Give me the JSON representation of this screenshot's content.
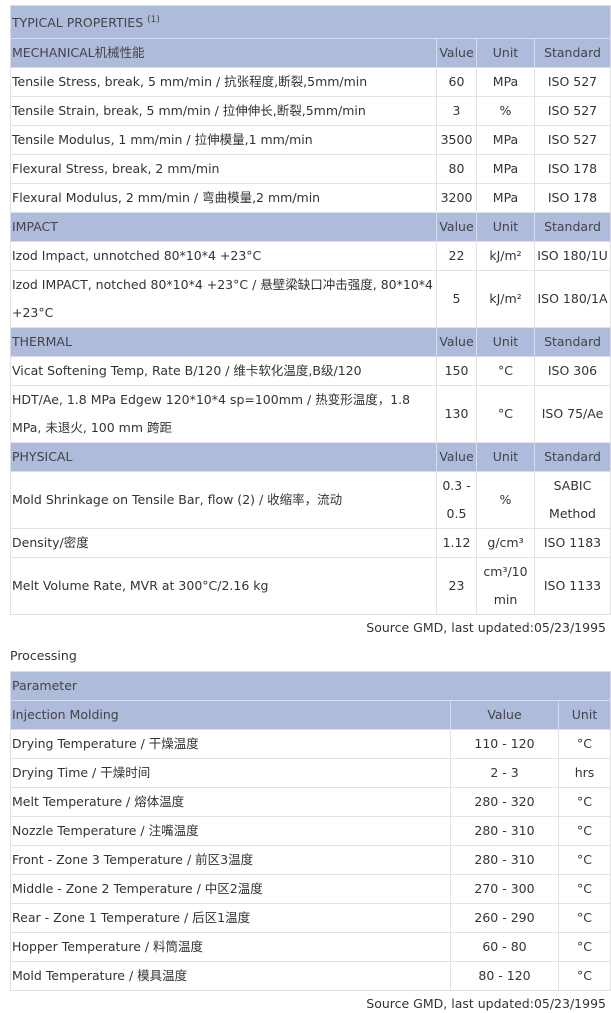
{
  "typical": {
    "title": "TYPICAL PROPERTIES",
    "title_note": "(1)",
    "col_value": "Value",
    "col_unit": "Unit",
    "col_standard": "Standard",
    "sections": [
      {
        "name": "MECHANICAL机械性能",
        "rows": [
          {
            "property": "Tensile Stress, break, 5 mm/min / 抗张程度,断裂,5mm/min",
            "value": "60",
            "unit": "MPa",
            "standard": "ISO 527"
          },
          {
            "property": "Tensile Strain, break, 5 mm/min / 拉伸伸长,断裂,5mm/min",
            "value": "3",
            "unit": "%",
            "standard": "ISO 527"
          },
          {
            "property": "Tensile Modulus, 1 mm/min / 拉伸模量,1 mm/min",
            "value": "3500",
            "unit": "MPa",
            "standard": "ISO 527"
          },
          {
            "property": "Flexural Stress, break, 2 mm/min",
            "value": "80",
            "unit": "MPa",
            "standard": "ISO 178"
          },
          {
            "property": "Flexural Modulus, 2 mm/min / 弯曲模量,2 mm/min",
            "value": "3200",
            "unit": "MPa",
            "standard": "ISO 178"
          }
        ]
      },
      {
        "name": "IMPACT",
        "rows": [
          {
            "property": "Izod Impact, unnotched 80*10*4 +23°C",
            "value": "22",
            "unit": "kJ/m²",
            "standard": "ISO 180/1U"
          },
          {
            "property": "Izod IMPACT, notched 80*10*4 +23°C / 悬壁梁缺口冲击强度, 80*10*4 +23°C",
            "value": "5",
            "unit": "kJ/m²",
            "standard": "ISO 180/1A"
          }
        ]
      },
      {
        "name": "THERMAL",
        "rows": [
          {
            "property": "Vicat Softening Temp, Rate B/120 / 维卡软化温度,B级/120",
            "value": "150",
            "unit": "°C",
            "standard": "ISO 306"
          },
          {
            "property": "HDT/Ae, 1.8 MPa Edgew 120*10*4 sp=100mm / 热变形温度，1.8 MPa, 未退火, 100 mm 跨距",
            "value": "130",
            "unit": "°C",
            "standard": "ISO 75/Ae"
          }
        ]
      },
      {
        "name": "PHYSICAL",
        "rows": [
          {
            "property": "Mold Shrinkage on Tensile Bar, flow (2) / 收缩率，流动",
            "value": "0.3 - 0.5",
            "unit": "%",
            "standard": "SABIC Method"
          },
          {
            "property": "Density/密度",
            "value": "1.12",
            "unit": "g/cm³",
            "standard": "ISO 1183"
          },
          {
            "property": "Melt Volume Rate, MVR at 300°C/2.16 kg",
            "value": "23",
            "unit": "cm³/10 min",
            "standard": "ISO 1133"
          }
        ]
      }
    ],
    "source": "Source GMD, last updated:05/23/1995"
  },
  "processing": {
    "title": "Processing",
    "param_header": "Parameter",
    "section": "Injection Molding",
    "col_value": "Value",
    "col_unit": "Unit",
    "rows": [
      {
        "property": "Drying Temperature / 干燥温度",
        "value": "110 - 120",
        "unit": "°C"
      },
      {
        "property": "Drying Time / 干燥时间",
        "value": "2 - 3",
        "unit": "hrs"
      },
      {
        "property": "Melt Temperature / 熔体温度",
        "value": "280 - 320",
        "unit": "°C"
      },
      {
        "property": "Nozzle Temperature / 注嘴温度",
        "value": "280 - 310",
        "unit": "°C"
      },
      {
        "property": "Front - Zone 3 Temperature / 前区3温度",
        "value": "280 - 310",
        "unit": "°C"
      },
      {
        "property": "Middle - Zone 2 Temperature / 中区2温度",
        "value": "270 - 300",
        "unit": "°C"
      },
      {
        "property": "Rear - Zone 1 Temperature / 后区1温度",
        "value": "260 - 290",
        "unit": "°C"
      },
      {
        "property": "Hopper Temperature / 料筒温度",
        "value": "60 - 80",
        "unit": "°C"
      },
      {
        "property": "Mold Temperature / 模具温度",
        "value": "80 - 120",
        "unit": "°C"
      }
    ],
    "source": "Source GMD, last updated:05/23/1995"
  },
  "colors": {
    "header_bg": "#afbbdb",
    "border": "#333333"
  }
}
